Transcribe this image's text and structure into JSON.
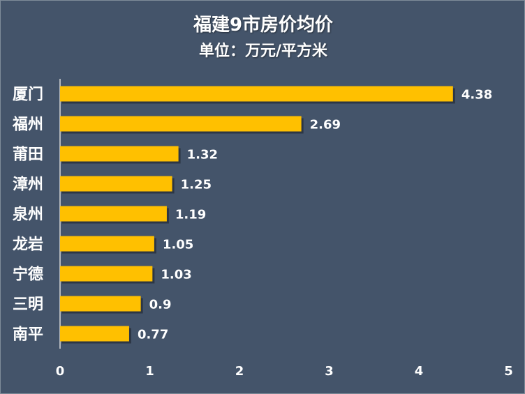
{
  "chart_data": {
    "type": "bar",
    "orientation": "horizontal",
    "title": "福建9市房价均价",
    "subtitle": "单位：万元/平方米",
    "categories": [
      "厦门",
      "福州",
      "莆田",
      "漳州",
      "泉州",
      "龙岩",
      "宁德",
      "三明",
      "南平"
    ],
    "values": [
      4.38,
      2.69,
      1.32,
      1.25,
      1.19,
      1.05,
      1.03,
      0.9,
      0.77
    ],
    "value_labels": [
      "4.38",
      "2.69",
      "1.32",
      "1.25",
      "1.19",
      "1.05",
      "1.03",
      "0.9",
      "0.77"
    ],
    "xlim": [
      0,
      5
    ],
    "xticks": [
      "0",
      "1",
      "2",
      "3",
      "4",
      "5"
    ],
    "grid": false,
    "legend": "none",
    "colors": {
      "background": "#44546a",
      "bar": "#ffc000",
      "text": "#ffffff"
    }
  }
}
